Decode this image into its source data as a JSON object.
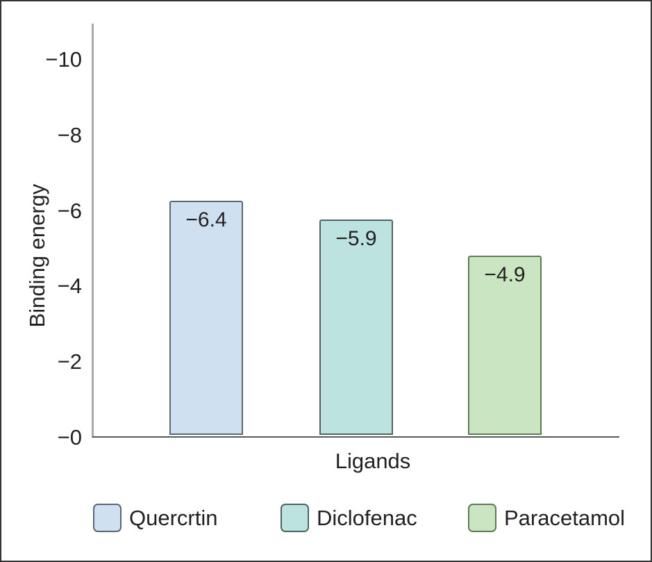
{
  "chart_data": {
    "type": "bar",
    "title": "",
    "xlabel": "Ligands",
    "ylabel": "Binding energy",
    "categories": [
      "Quercrtin",
      "Diclofenac",
      "Paracetamol"
    ],
    "values": [
      -6.4,
      -5.9,
      -4.9
    ],
    "bar_value_labels": [
      "−6.4",
      "−5.9",
      "−4.9"
    ],
    "bar_fill_colors": [
      "#cfe0f1",
      "#bde3e0",
      "#c9e5c1"
    ],
    "bar_border_colors": [
      "#5b6673",
      "#4c6360",
      "#5e7a55"
    ],
    "y_axis": {
      "direction": "negative-up",
      "range_shown": [
        -10,
        0
      ],
      "ticks": [
        {
          "value": -10,
          "label": "−10"
        },
        {
          "value": -8,
          "label": "−8"
        },
        {
          "value": -6,
          "label": "−6"
        },
        {
          "value": -4,
          "label": "−4"
        },
        {
          "value": -2,
          "label": "−2"
        },
        {
          "value": 0,
          "label": "−0"
        }
      ]
    },
    "grid": false,
    "legend": {
      "position": "bottom",
      "entries": [
        {
          "label": "Quercrtin",
          "fill": "#cfe0f1",
          "border": "#5b6673"
        },
        {
          "label": "Diclofenac",
          "fill": "#bde3e0",
          "border": "#4c6360"
        },
        {
          "label": "Paracetamol",
          "fill": "#c9e5c1",
          "border": "#5e7a55"
        }
      ]
    },
    "text_color": "#231f20",
    "y_axis_color": "#a7a9ac",
    "x_axis_color": "#58595b",
    "frame_color": "#343434"
  }
}
